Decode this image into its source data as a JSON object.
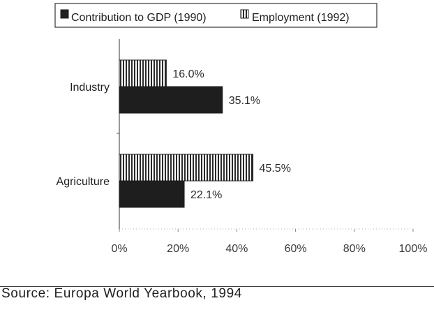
{
  "chart_data": {
    "type": "bar",
    "orientation": "horizontal",
    "categories": [
      "Industry",
      "Agriculture"
    ],
    "series": [
      {
        "name": "Employment (1992)",
        "values": [
          16.0,
          45.5
        ],
        "labels": [
          "16.0%",
          "45.5%"
        ],
        "pattern": "vertical-hatch",
        "color": "#1e1e1e"
      },
      {
        "name": "Contribution to GDP (1990)",
        "values": [
          35.1,
          22.1
        ],
        "labels": [
          "35.1%",
          "22.1%"
        ],
        "pattern": "solid",
        "color": "#1e1e1e"
      }
    ],
    "legend_order": [
      1,
      0
    ],
    "xlim": [
      0,
      100
    ],
    "xticks": [
      0,
      20,
      40,
      60,
      80,
      100
    ],
    "xtick_labels": [
      "0%",
      "20%",
      "40%",
      "60%",
      "80%",
      "100%"
    ],
    "legend_position": "top",
    "grid": false
  },
  "source": "Source: Europa World Yearbook, 1994"
}
